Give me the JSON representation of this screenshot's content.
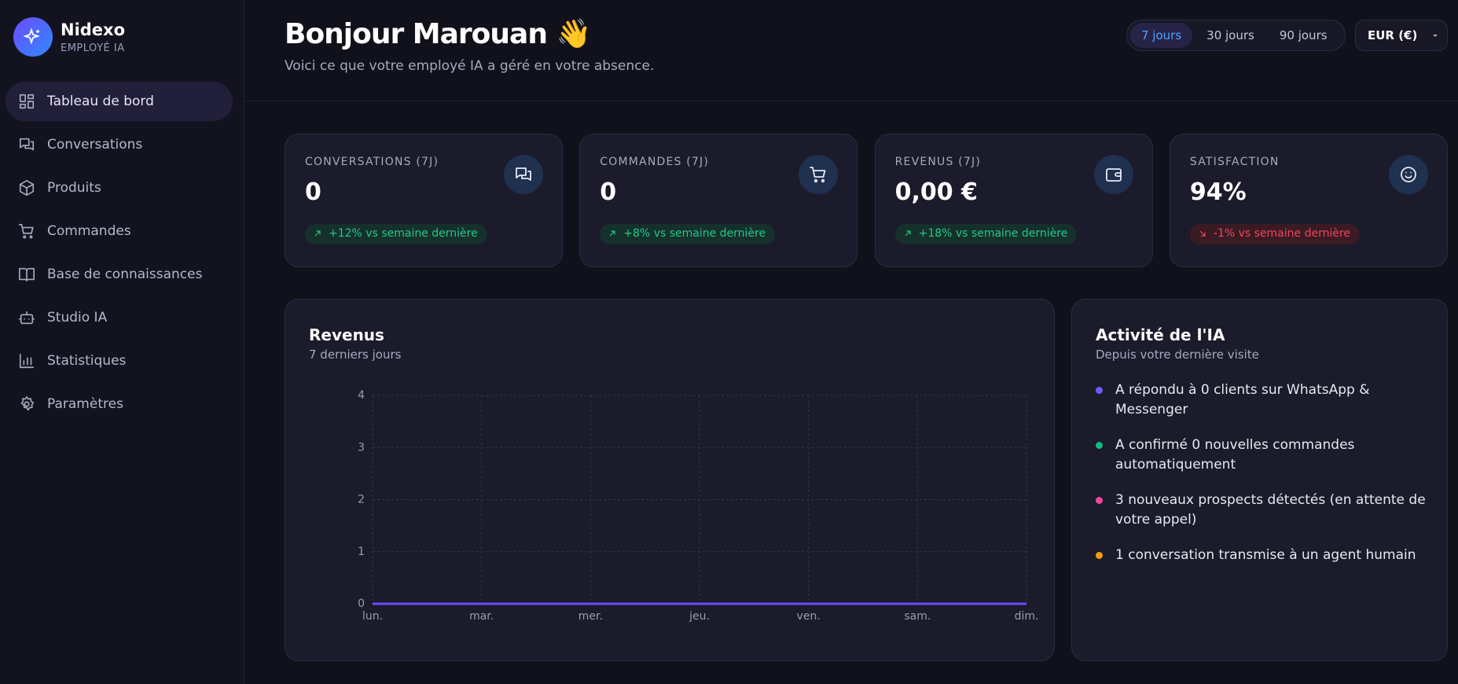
{
  "sidebar": {
    "brand": {
      "name": "Nidexo",
      "tagline": "EMPLOYÉ IA"
    },
    "nav": [
      "Tableau de bord",
      "Conversations",
      "Produits",
      "Commandes",
      "Base de connaissances",
      "Studio IA",
      "Statistiques",
      "Paramètres"
    ]
  },
  "header": {
    "greeting": "Bonjour Marouan 👋",
    "subtitle": "Voici ce que votre employé IA a géré en votre absence.",
    "periods": [
      "7 jours",
      "30 jours",
      "90 jours"
    ],
    "currency": "EUR (€)"
  },
  "kpis": [
    {
      "label": "CONVERSATIONS (7J)",
      "value": "0",
      "change": "+12% vs semaine dernière"
    },
    {
      "label": "COMMANDES (7J)",
      "value": "0",
      "change": "+8% vs semaine dernière"
    },
    {
      "label": "REVENUS (7J)",
      "value": "0,00 €",
      "change": "+18% vs semaine dernière"
    },
    {
      "label": "SATISFACTION",
      "value": "94%",
      "change": "-1% vs semaine dernière"
    }
  ],
  "chart_data": {
    "type": "line",
    "title": "Revenus",
    "subtitle": "7 derniers jours",
    "categories": [
      "lun.",
      "mar.",
      "mer.",
      "jeu.",
      "ven.",
      "sam.",
      "dim."
    ],
    "values": [
      0,
      0,
      0,
      0,
      0,
      0,
      0
    ],
    "color": "#6d4aff",
    "ylim": [
      0,
      4
    ],
    "yticks": [
      0,
      1,
      2,
      3,
      4
    ],
    "grid": true
  },
  "activity": {
    "title": "Activité de l'IA",
    "subtitle": "Depuis votre dernière visite",
    "items": [
      {
        "text": "A répondu à 0 clients sur WhatsApp & Messenger",
        "color": "#6d5cff"
      },
      {
        "text": "A confirmé 0 nouvelles commandes automatiquement",
        "color": "#10b981"
      },
      {
        "text": "3 nouveaux prospects détectés (en attente de votre appel)",
        "color": "#ec4899"
      },
      {
        "text": "1 conversation transmise à un agent humain",
        "color": "#f59e0b"
      }
    ]
  }
}
